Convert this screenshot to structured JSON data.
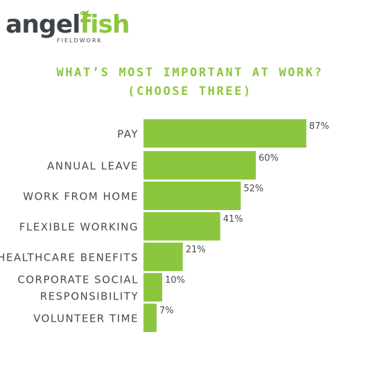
{
  "brand": {
    "name_part1": "angel",
    "name_part2": "fish",
    "tagline": "FIELDWORK",
    "fish_icon": "fish-icon",
    "primary_color": "#8cc63f",
    "dark_color": "#3d4448"
  },
  "chart_data": {
    "type": "bar",
    "orientation": "horizontal",
    "title": "WHAT’S MOST IMPORTANT AT WORK? (CHOOSE THREE)",
    "categories": [
      "PAY",
      "ANNUAL LEAVE",
      "WORK FROM HOME",
      "FLEXIBLE WORKING",
      "HEALTHCARE BENEFITS",
      "CORPORATE SOCIAL RESPONSIBILITY",
      "VOLUNTEER TIME"
    ],
    "category_lines": [
      [
        "PAY"
      ],
      [
        "ANNUAL LEAVE"
      ],
      [
        "WORK FROM HOME"
      ],
      [
        "FLEXIBLE WORKING"
      ],
      [
        "HEALTHCARE BENEFITS"
      ],
      [
        "CORPORATE SOCIAL",
        "RESPONSIBILITY"
      ],
      [
        "VOLUNTEER TIME"
      ]
    ],
    "values": [
      87,
      60,
      52,
      41,
      21,
      10,
      7
    ],
    "value_labels": [
      "87%",
      "60%",
      "52%",
      "41%",
      "21%",
      "10%",
      "7%"
    ],
    "unit": "%",
    "xlim": [
      0,
      100
    ],
    "grid": false,
    "bar_color": "#8cc63f"
  }
}
